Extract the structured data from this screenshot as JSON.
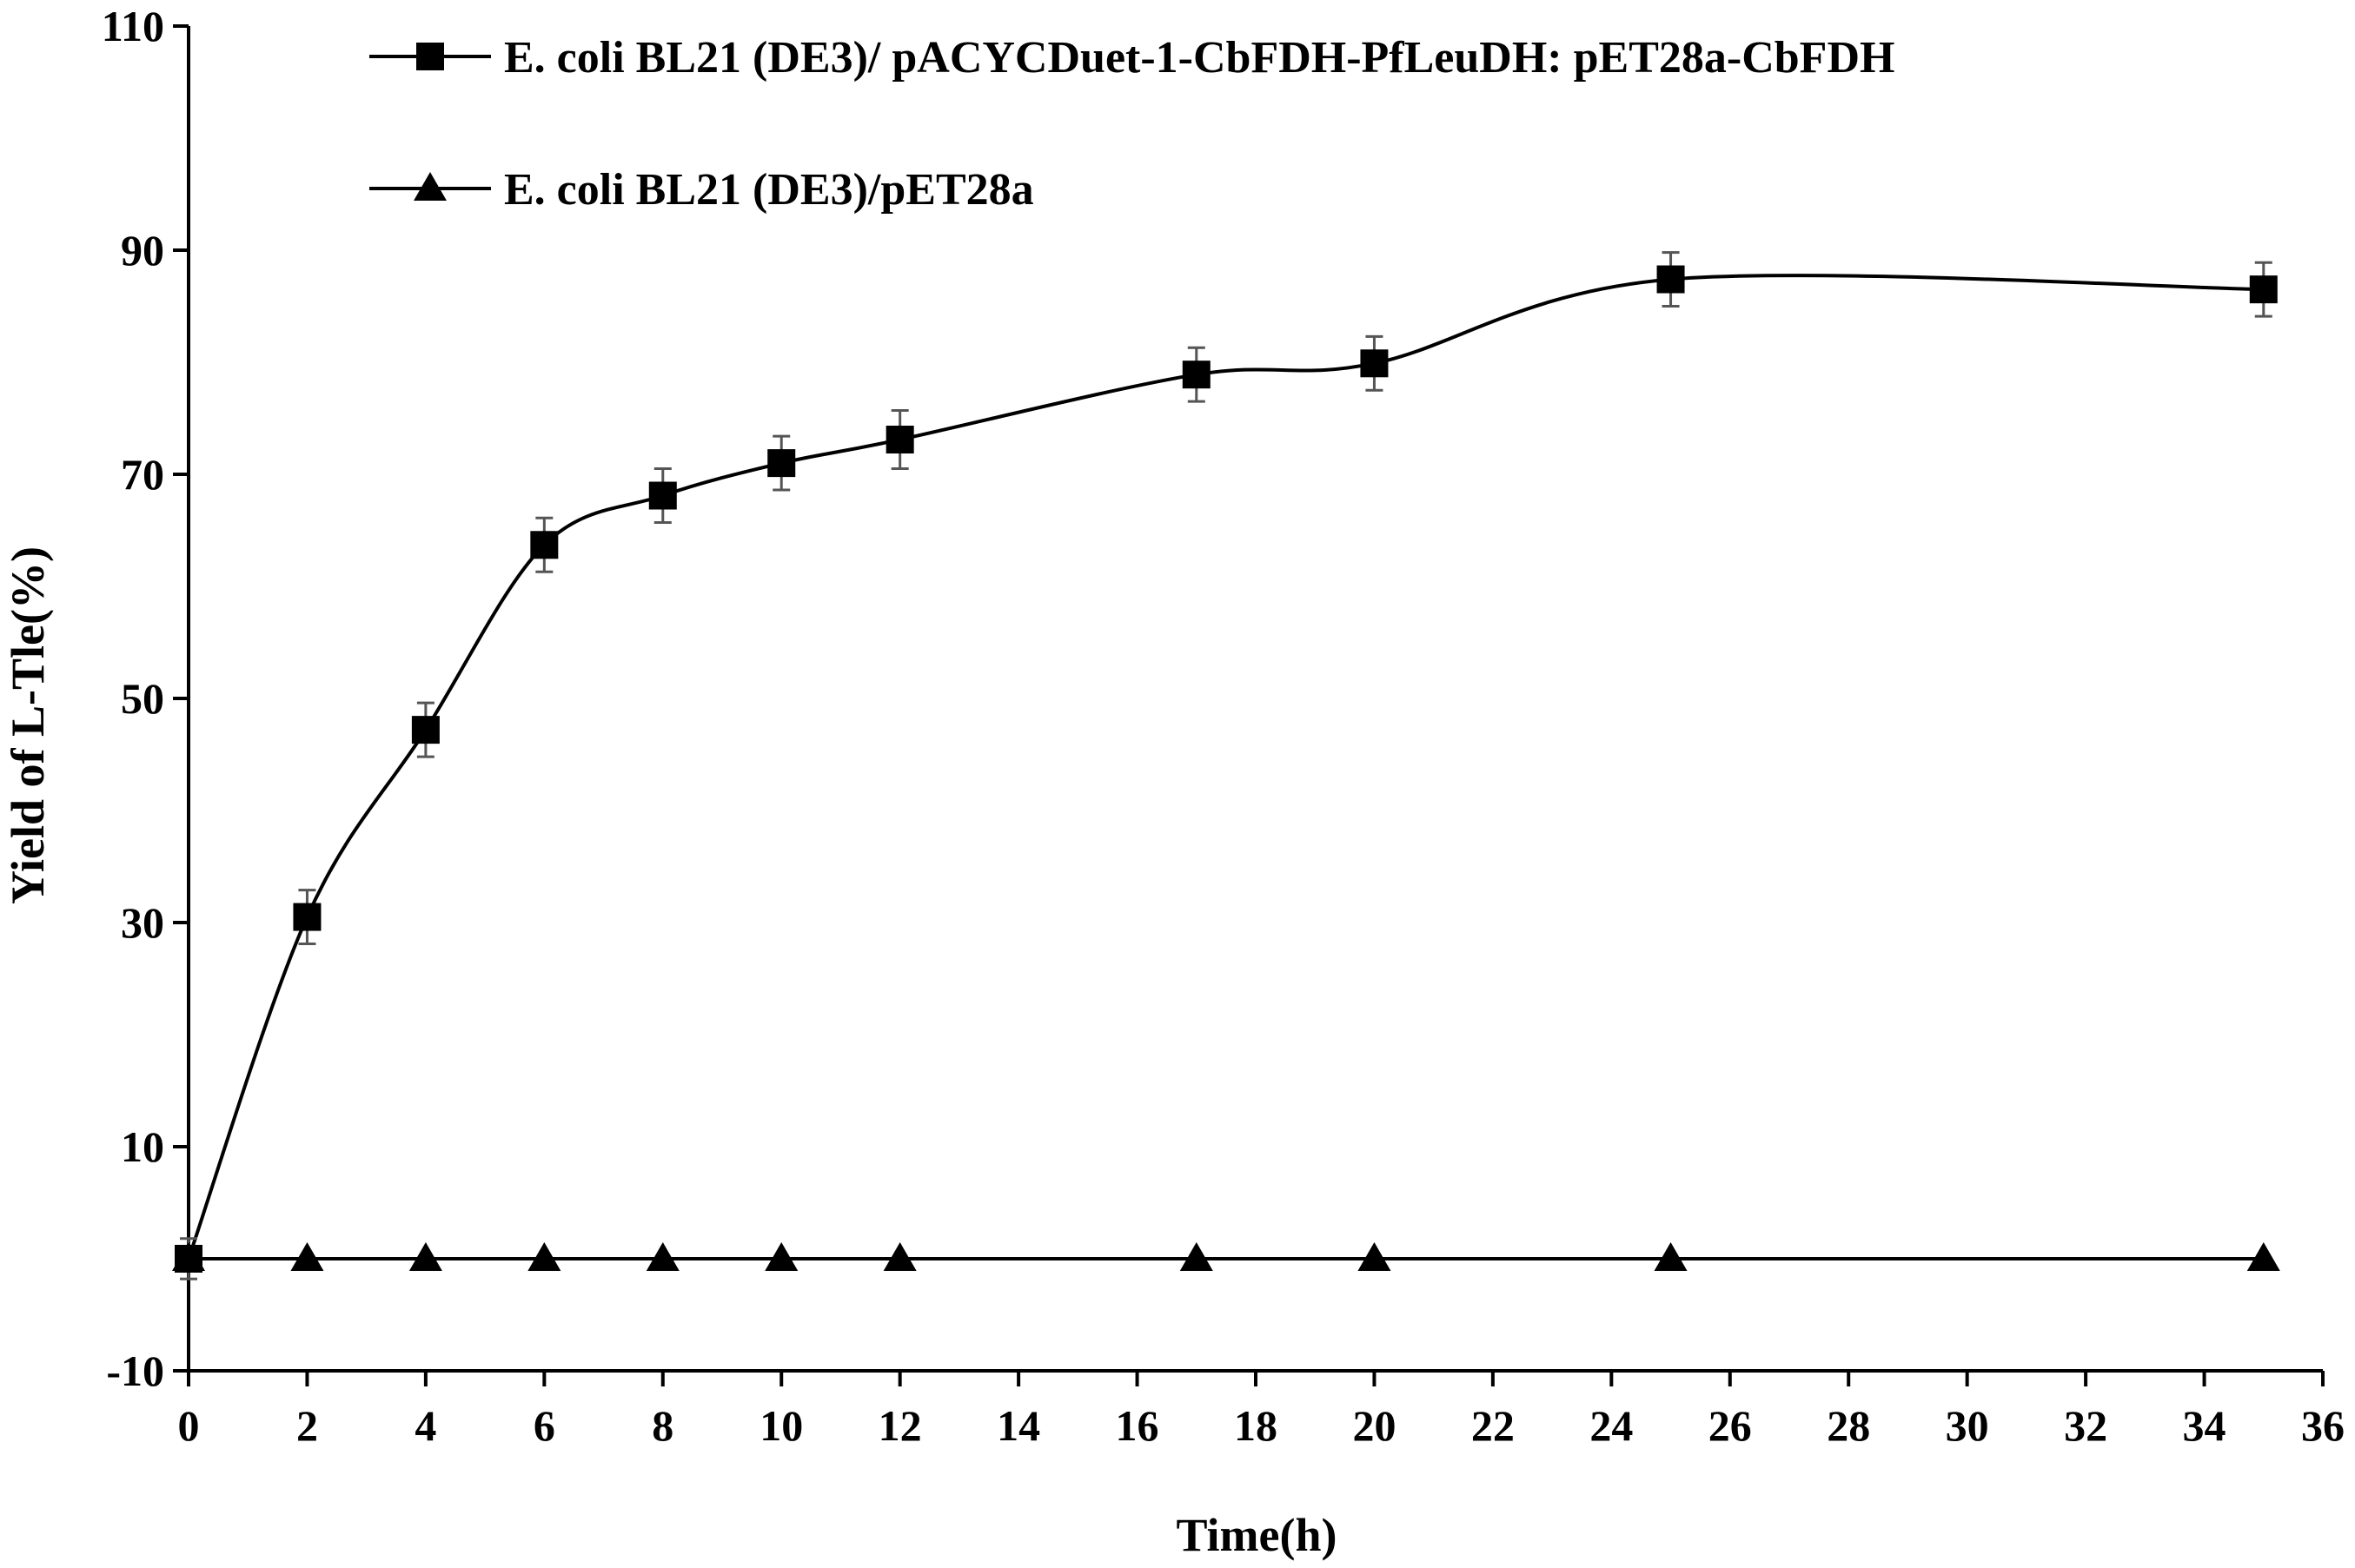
{
  "chart_data": {
    "type": "line",
    "xlabel": "Time(h)",
    "ylabel": "Yield of L-Tle(%)",
    "xlim": [
      0,
      36
    ],
    "ylim": [
      -10,
      110
    ],
    "xticks": [
      0,
      2,
      4,
      6,
      8,
      10,
      12,
      14,
      16,
      18,
      20,
      22,
      24,
      26,
      28,
      30,
      32,
      34,
      36
    ],
    "yticks": [
      -10,
      10,
      30,
      50,
      70,
      90,
      110
    ],
    "grid": false,
    "legend_position": "top",
    "series": [
      {
        "name": "E. coli BL21 (DE3)/ pACYCDuet-1-CbFDH-PfLeuDH: pET28a-CbFDH",
        "marker": "square",
        "smooth": true,
        "x": [
          0,
          2,
          4,
          6,
          8,
          10,
          12,
          17,
          20,
          25,
          35
        ],
        "y": [
          0,
          30.5,
          47.2,
          63.7,
          68.1,
          71.0,
          73.1,
          78.9,
          79.9,
          87.4,
          86.5
        ],
        "error": [
          1.8,
          2.4,
          2.4,
          2.4,
          2.4,
          2.4,
          2.6,
          2.4,
          2.4,
          2.4,
          2.4
        ]
      },
      {
        "name": "E. coli BL21 (DE3)/pET28a",
        "marker": "triangle",
        "smooth": false,
        "x": [
          0,
          2,
          4,
          6,
          8,
          10,
          12,
          17,
          20,
          25,
          35
        ],
        "y": [
          0,
          0,
          0,
          0,
          0,
          0,
          0,
          0,
          0,
          0,
          0
        ]
      }
    ]
  }
}
